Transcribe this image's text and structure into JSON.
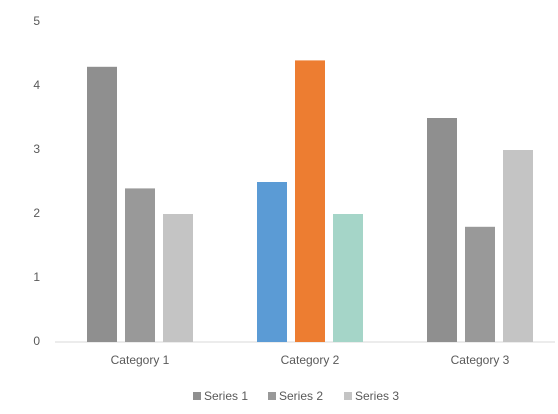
{
  "chart_data": {
    "type": "bar",
    "categories": [
      "Category 1",
      "Category 2",
      "Category 3"
    ],
    "series": [
      {
        "name": "Series 1",
        "color": "#8f8f8f",
        "colors": [
          "#8f8f8f",
          "#5b9bd5",
          "#8f8f8f"
        ],
        "values": [
          4.3,
          2.5,
          3.5
        ]
      },
      {
        "name": "Series 2",
        "color": "#999999",
        "colors": [
          "#999999",
          "#ed7d31",
          "#999999"
        ],
        "values": [
          2.4,
          4.4,
          1.8
        ]
      },
      {
        "name": "Series 3",
        "color": "#c4c4c4",
        "colors": [
          "#c4c4c4",
          "#a5d5c8",
          "#c4c4c4"
        ],
        "values": [
          2,
          2,
          3
        ]
      }
    ],
    "ylim": [
      0,
      5
    ],
    "yticks": [
      0,
      1,
      2,
      3,
      4,
      5
    ],
    "grid": false,
    "legend": "bottom"
  }
}
